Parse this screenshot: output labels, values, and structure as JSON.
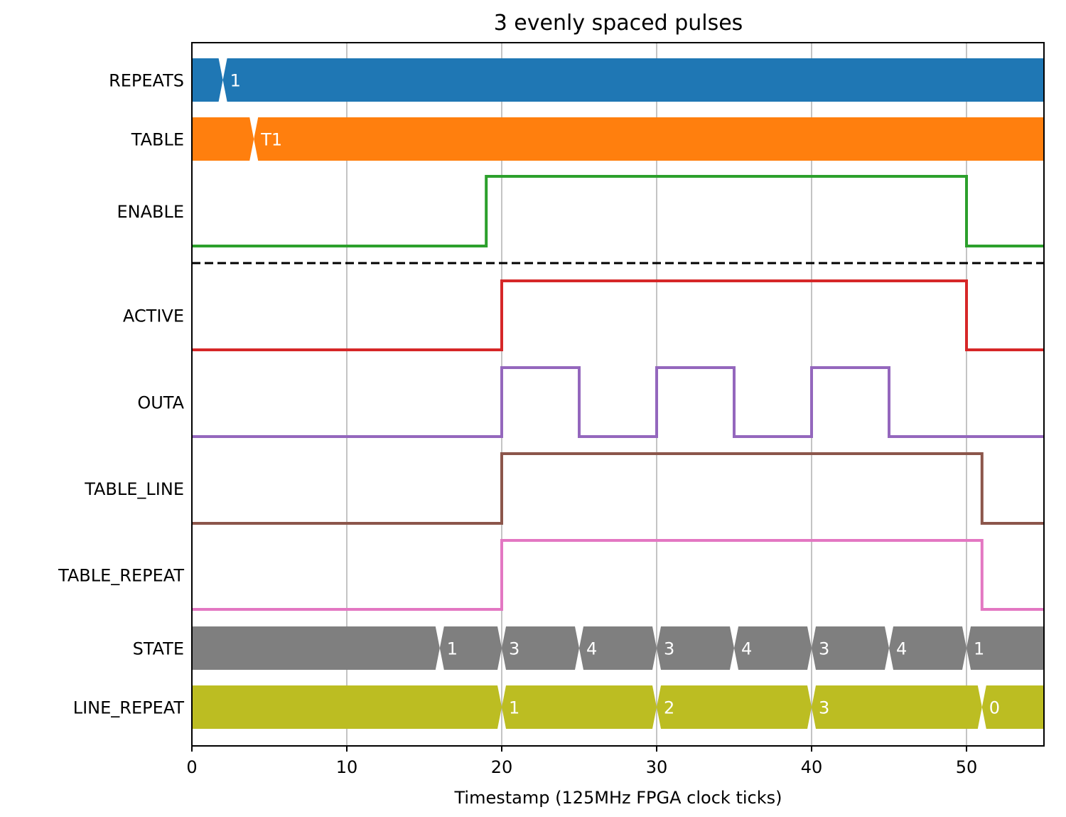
{
  "chart_data": {
    "type": "timing",
    "title": "3 evenly spaced pulses",
    "xlabel": "Timestamp (125MHz FPGA clock ticks)",
    "ylabel": "",
    "xlim": [
      0,
      55
    ],
    "xticks": [
      0,
      10,
      20,
      30,
      40,
      50
    ],
    "grid": "vertical",
    "input_signals": [
      {
        "name": "REPEATS",
        "kind": "bus",
        "color": "#1f77b4",
        "transitions": [
          {
            "t": 2,
            "value": "1"
          }
        ]
      },
      {
        "name": "TABLE",
        "kind": "bus",
        "color": "#ff7f0e",
        "transitions": [
          {
            "t": 4,
            "value": "T1"
          }
        ]
      },
      {
        "name": "ENABLE",
        "kind": "bit",
        "color": "#2ca02c",
        "initial": 0,
        "transitions": [
          {
            "t": 19,
            "value": 1
          },
          {
            "t": 50,
            "value": 0
          }
        ]
      }
    ],
    "output_signals": [
      {
        "name": "ACTIVE",
        "kind": "bit",
        "color": "#d62728",
        "initial": 0,
        "transitions": [
          {
            "t": 20,
            "value": 1
          },
          {
            "t": 50,
            "value": 0
          }
        ]
      },
      {
        "name": "OUTA",
        "kind": "bit",
        "color": "#9467bd",
        "initial": 0,
        "transitions": [
          {
            "t": 20,
            "value": 1
          },
          {
            "t": 25,
            "value": 0
          },
          {
            "t": 30,
            "value": 1
          },
          {
            "t": 35,
            "value": 0
          },
          {
            "t": 40,
            "value": 1
          },
          {
            "t": 45,
            "value": 0
          }
        ]
      },
      {
        "name": "TABLE_LINE",
        "kind": "bit",
        "color": "#8c564b",
        "initial": 0,
        "transitions": [
          {
            "t": 20,
            "value": 1
          },
          {
            "t": 51,
            "value": 0
          }
        ]
      },
      {
        "name": "TABLE_REPEAT",
        "kind": "bit",
        "color": "#e377c2",
        "initial": 0,
        "transitions": [
          {
            "t": 20,
            "value": 1
          },
          {
            "t": 51,
            "value": 0
          }
        ]
      },
      {
        "name": "STATE",
        "kind": "bus",
        "color": "#7f7f7f",
        "transitions": [
          {
            "t": 16,
            "value": "1"
          },
          {
            "t": 20,
            "value": "3"
          },
          {
            "t": 25,
            "value": "4"
          },
          {
            "t": 30,
            "value": "3"
          },
          {
            "t": 35,
            "value": "4"
          },
          {
            "t": 40,
            "value": "3"
          },
          {
            "t": 45,
            "value": "4"
          },
          {
            "t": 50,
            "value": "1"
          }
        ]
      },
      {
        "name": "LINE_REPEAT",
        "kind": "bus",
        "color": "#bcbd22",
        "transitions": [
          {
            "t": 20,
            "value": "1"
          },
          {
            "t": 30,
            "value": "2"
          },
          {
            "t": 40,
            "value": "3"
          },
          {
            "t": 51,
            "value": "0"
          }
        ]
      }
    ]
  }
}
